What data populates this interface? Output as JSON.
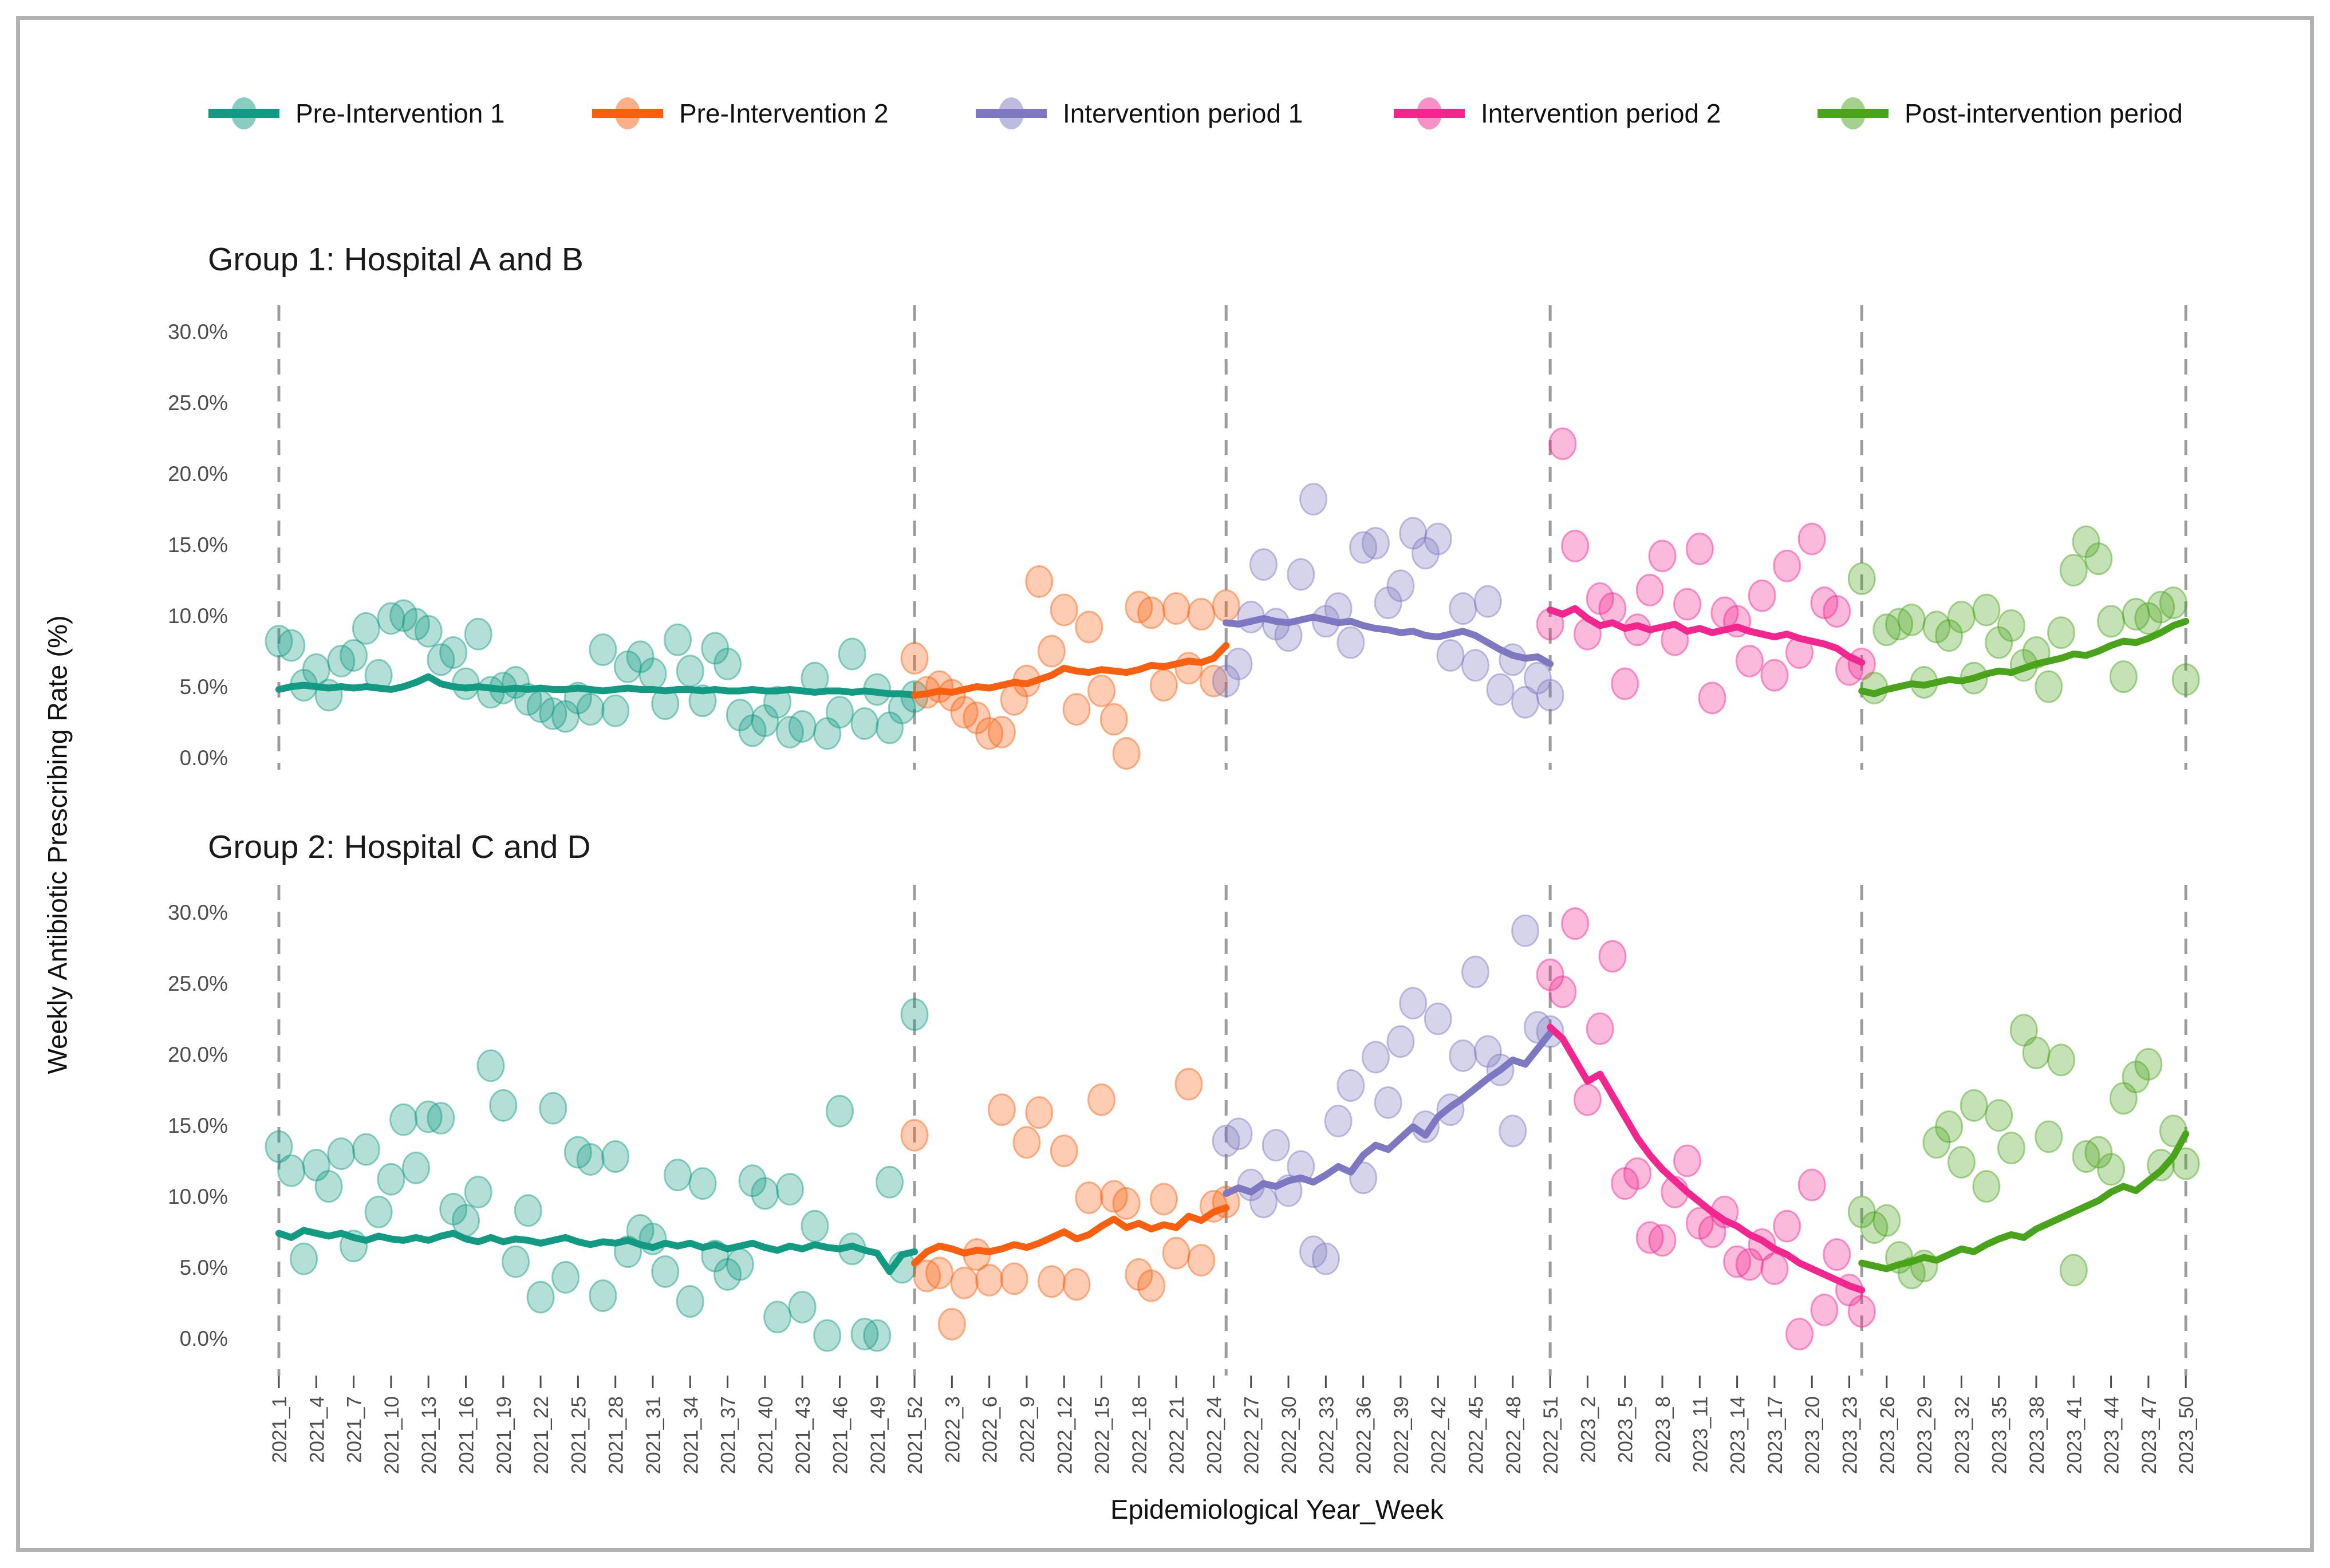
{
  "figure": {
    "y_axis_title": "Weekly Antibiotic Prescribing Rate (%)",
    "x_axis_title": "Epidemiological Year_Week",
    "legend": [
      {
        "label": "Pre-Intervention 1",
        "color": "#129B82"
      },
      {
        "label": "Pre-Intervention 2",
        "color": "#F8600F"
      },
      {
        "label": "Intervention period 1",
        "color": "#7E78C2"
      },
      {
        "label": "Intervention period 2",
        "color": "#F2268E"
      },
      {
        "label": "Post-intervention period",
        "color": "#4AA41B"
      }
    ],
    "divider_color": "#9C9C9C",
    "frame_color": "#B2B2B2"
  },
  "chart_data": {
    "type": "scatter+line",
    "title": "",
    "xlabel": "Epidemiological Year_Week",
    "ylabel": "Weekly Antibiotic Prescribing Rate (%)",
    "ylim": [
      0,
      30
    ],
    "grid": false,
    "legend_position": "top",
    "x_unit": "epidemiological week; week 1 = 2021_1, weekly spacing, 154 weeks total",
    "y_ticks": [
      {
        "label": "30.0%",
        "pct": 30
      },
      {
        "label": "25.0%",
        "pct": 25
      },
      {
        "label": "20.0%",
        "pct": 20
      },
      {
        "label": "15.0%",
        "pct": 15
      },
      {
        "label": "10.0%",
        "pct": 10
      },
      {
        "label": "5.0%",
        "pct": 5
      },
      {
        "label": "0.0%",
        "pct": 0
      }
    ],
    "x_tick_step_weeks": 3,
    "x_tick_labels": [
      "2021_1",
      "2021_4",
      "2021_7",
      "2021_10",
      "2021_13",
      "2021_16",
      "2021_19",
      "2021_22",
      "2021_25",
      "2021_28",
      "2021_31",
      "2021_34",
      "2021_37",
      "2021_40",
      "2021_43",
      "2021_46",
      "2021_49",
      "2021_52",
      "2022_3",
      "2022_6",
      "2022_9",
      "2022_12",
      "2022_15",
      "2022_18",
      "2022_21",
      "2022_24",
      "2022_27",
      "2022_30",
      "2022_33",
      "2022_36",
      "2022_39",
      "2022_42",
      "2022_45",
      "2022_48",
      "2022_51",
      "2023_2",
      "2023_5",
      "2023_8",
      "2023_11",
      "2023_14",
      "2023_17",
      "2023_20",
      "2023_23",
      "2023_26",
      "2023_29",
      "2023_32",
      "2023_35",
      "2023_38",
      "2023_41",
      "2023_44",
      "2023_47",
      "2023_50"
    ],
    "period_boundaries_weeks": [
      1,
      52,
      77,
      103,
      128,
      154
    ],
    "panels": [
      {
        "title": "Group 1: Hospital A and B",
        "series": [
          {
            "name": "Pre-Intervention 1",
            "color": "#129B82",
            "start_week": 1,
            "line": [
              4.8,
              5.0,
              5.1,
              5.0,
              4.9,
              5.0,
              4.9,
              5.0,
              4.9,
              4.8,
              5.0,
              5.3,
              5.7,
              5.2,
              5.0,
              4.9,
              5.0,
              4.9,
              4.8,
              4.9,
              4.8,
              4.9,
              4.8,
              4.8,
              4.9,
              4.8,
              4.7,
              4.8,
              4.9,
              4.8,
              4.8,
              4.7,
              4.8,
              4.8,
              4.7,
              4.8,
              4.7,
              4.7,
              4.8,
              4.7,
              4.7,
              4.8,
              4.7,
              4.6,
              4.7,
              4.7,
              4.6,
              4.7,
              4.6,
              4.5,
              4.5,
              4.4
            ],
            "scatter": [
              8.2,
              7.9,
              5.1,
              6.2,
              4.4,
              6.8,
              7.2,
              9.1,
              5.8,
              9.8,
              10.0,
              9.4,
              8.9,
              6.9,
              7.4,
              5.2,
              8.7,
              4.6,
              4.9,
              5.3,
              4.1,
              3.6,
              3.1,
              2.9,
              4.2,
              3.4,
              7.6,
              3.3,
              6.4,
              7.1,
              5.9,
              3.8,
              8.3,
              6.1,
              4.0,
              7.7,
              6.6,
              3.0,
              1.9,
              2.6,
              3.9,
              1.8,
              2.2,
              5.6,
              1.7,
              3.2,
              7.3,
              2.4,
              4.8,
              2.1,
              3.5,
              4.3
            ]
          },
          {
            "name": "Pre-Intervention 2",
            "color": "#F8600F",
            "start_week": 52,
            "line": [
              4.4,
              4.5,
              4.7,
              4.6,
              4.8,
              5.0,
              4.9,
              5.1,
              5.3,
              5.2,
              5.5,
              5.8,
              6.3,
              6.1,
              6.0,
              6.2,
              6.1,
              6.0,
              6.2,
              6.5,
              6.4,
              6.6,
              6.8,
              6.7,
              7.0,
              7.9
            ],
            "scatter": [
              7.0,
              4.6,
              5.0,
              4.4,
              3.2,
              2.8,
              1.7,
              1.8,
              4.1,
              5.4,
              12.4,
              7.5,
              10.4,
              3.4,
              9.2,
              4.7,
              2.7,
              0.3,
              10.6,
              10.2,
              5.1,
              10.5,
              6.3,
              10.1,
              5.4,
              10.7
            ]
          },
          {
            "name": "Intervention period 1",
            "color": "#7E78C2",
            "start_week": 77,
            "line": [
              9.5,
              9.4,
              9.6,
              9.8,
              9.6,
              9.5,
              9.7,
              9.9,
              9.7,
              9.5,
              9.6,
              9.3,
              9.1,
              9.0,
              8.8,
              8.9,
              8.6,
              8.5,
              8.7,
              8.9,
              8.6,
              8.1,
              7.6,
              7.2,
              7.0,
              7.1,
              6.6
            ],
            "scatter": [
              5.4,
              6.6,
              9.9,
              13.6,
              9.4,
              8.6,
              12.9,
              18.2,
              9.6,
              10.5,
              8.1,
              14.8,
              15.1,
              10.9,
              12.1,
              15.8,
              14.4,
              15.4,
              7.2,
              10.5,
              6.5,
              11.0,
              4.8,
              6.9,
              3.9,
              5.6,
              4.4
            ]
          },
          {
            "name": "Intervention period 2",
            "color": "#F2268E",
            "start_week": 103,
            "line": [
              10.4,
              10.1,
              10.5,
              9.8,
              9.3,
              9.5,
              9.1,
              9.3,
              9.0,
              9.2,
              9.4,
              8.9,
              9.1,
              8.8,
              9.0,
              9.2,
              8.9,
              8.7,
              8.5,
              8.7,
              8.4,
              8.2,
              8.0,
              7.7,
              7.1,
              6.7
            ],
            "scatter": [
              9.4,
              22.1,
              14.9,
              8.7,
              11.2,
              10.5,
              5.2,
              9.0,
              11.8,
              14.2,
              8.3,
              10.8,
              14.7,
              4.2,
              10.2,
              9.6,
              6.8,
              11.4,
              5.8,
              13.5,
              7.4,
              15.4,
              10.9,
              10.3,
              6.2,
              6.6
            ]
          },
          {
            "name": "Post-intervention period",
            "color": "#4AA41B",
            "start_week": 128,
            "line": [
              4.7,
              4.5,
              4.8,
              5.0,
              5.2,
              5.1,
              5.3,
              5.5,
              5.4,
              5.6,
              5.9,
              6.1,
              6.0,
              6.3,
              6.6,
              6.8,
              7.0,
              7.3,
              7.2,
              7.5,
              7.9,
              8.2,
              8.1,
              8.4,
              8.8,
              9.3,
              9.6
            ],
            "scatter": [
              12.6,
              4.9,
              9.0,
              9.4,
              9.7,
              5.3,
              9.2,
              8.6,
              9.9,
              5.6,
              10.4,
              8.1,
              9.3,
              6.5,
              7.4,
              5.0,
              8.8,
              13.2,
              15.2,
              14.0,
              9.6,
              5.7,
              10.1,
              9.8,
              10.6,
              10.9,
              5.5
            ]
          }
        ]
      },
      {
        "title": "Group 2: Hospital C and D",
        "series": [
          {
            "name": "Pre-Intervention 1",
            "color": "#129B82",
            "start_week": 1,
            "line": [
              7.4,
              7.1,
              7.6,
              7.4,
              7.2,
              7.4,
              7.1,
              6.9,
              7.2,
              7.0,
              6.9,
              7.1,
              6.9,
              7.2,
              7.4,
              7.0,
              6.8,
              7.1,
              6.8,
              7.0,
              6.9,
              6.7,
              6.9,
              7.1,
              6.8,
              6.6,
              6.8,
              6.7,
              6.9,
              6.6,
              6.4,
              6.7,
              6.5,
              6.7,
              6.4,
              6.6,
              6.3,
              6.5,
              6.7,
              6.4,
              6.2,
              6.5,
              6.3,
              6.6,
              6.4,
              6.3,
              6.5,
              6.2,
              6.0,
              4.7,
              5.9,
              6.1
            ],
            "scatter": [
              13.5,
              11.8,
              5.6,
              12.2,
              10.7,
              13.0,
              6.5,
              13.3,
              8.9,
              11.2,
              15.4,
              12.0,
              15.6,
              15.5,
              9.1,
              8.3,
              10.3,
              19.2,
              16.4,
              5.4,
              9.0,
              2.9,
              16.2,
              4.3,
              13.1,
              12.6,
              3.0,
              12.8,
              6.1,
              7.6,
              7.0,
              4.7,
              11.5,
              2.6,
              10.9,
              5.8,
              4.5,
              5.2,
              11.1,
              10.2,
              1.5,
              10.5,
              2.2,
              7.9,
              0.2,
              16.0,
              6.3,
              0.3,
              0.2,
              11.0,
              5.0,
              22.8
            ]
          },
          {
            "name": "Pre-Intervention 2",
            "color": "#F8600F",
            "start_week": 52,
            "line": [
              5.3,
              6.1,
              6.5,
              6.3,
              6.0,
              6.2,
              6.1,
              6.3,
              6.6,
              6.4,
              6.7,
              7.1,
              7.5,
              7.0,
              7.3,
              7.9,
              8.4,
              7.8,
              8.1,
              7.7,
              8.0,
              7.8,
              8.6,
              8.3,
              8.9,
              9.2
            ],
            "scatter": [
              14.3,
              4.4,
              4.6,
              1.0,
              3.9,
              5.9,
              4.1,
              16.1,
              4.2,
              13.8,
              15.9,
              4.0,
              13.2,
              3.8,
              9.9,
              16.8,
              10.0,
              9.5,
              4.5,
              3.7,
              9.8,
              6.0,
              17.9,
              5.5,
              9.3,
              9.6
            ]
          },
          {
            "name": "Intervention period 1",
            "color": "#7E78C2",
            "start_week": 77,
            "line": [
              10.2,
              10.6,
              10.3,
              10.9,
              10.7,
              11.1,
              11.3,
              11.0,
              11.5,
              12.1,
              11.7,
              12.9,
              13.6,
              13.3,
              14.1,
              14.9,
              14.3,
              15.6,
              16.3,
              16.9,
              17.6,
              18.3,
              18.9,
              19.6,
              19.3,
              20.4,
              21.5
            ],
            "scatter": [
              13.9,
              14.4,
              10.8,
              9.6,
              13.6,
              10.4,
              12.1,
              6.1,
              5.6,
              15.3,
              17.8,
              11.3,
              19.8,
              16.6,
              20.9,
              23.6,
              14.9,
              22.5,
              16.1,
              19.9,
              25.8,
              20.2,
              18.9,
              14.6,
              28.7,
              21.9,
              21.6
            ]
          },
          {
            "name": "Intervention period 2",
            "color": "#F2268E",
            "start_week": 103,
            "line": [
              21.9,
              21.1,
              19.6,
              18.1,
              18.6,
              17.1,
              15.6,
              14.1,
              12.9,
              11.9,
              11.1,
              10.3,
              9.6,
              8.9,
              8.3,
              7.9,
              7.3,
              6.9,
              6.3,
              5.9,
              5.3,
              4.9,
              4.5,
              4.1,
              3.7,
              3.4
            ],
            "scatter": [
              25.6,
              24.4,
              29.2,
              16.8,
              21.8,
              26.9,
              10.9,
              11.6,
              7.1,
              6.9,
              10.3,
              12.5,
              8.1,
              7.5,
              8.9,
              5.4,
              5.2,
              6.6,
              4.9,
              7.9,
              0.3,
              10.8,
              2.0,
              5.9,
              3.4,
              1.9
            ]
          },
          {
            "name": "Post-intervention period",
            "color": "#4AA41B",
            "start_week": 128,
            "line": [
              5.3,
              5.1,
              4.9,
              5.2,
              5.4,
              5.7,
              5.5,
              5.9,
              6.3,
              6.1,
              6.6,
              7.0,
              7.3,
              7.1,
              7.7,
              8.1,
              8.5,
              8.9,
              9.3,
              9.7,
              10.3,
              10.7,
              10.4,
              11.1,
              11.8,
              12.8,
              14.4
            ],
            "scatter": [
              8.9,
              7.8,
              8.3,
              5.7,
              4.6,
              5.1,
              13.8,
              14.9,
              12.4,
              16.4,
              10.7,
              15.7,
              13.4,
              21.7,
              20.1,
              14.2,
              19.6,
              4.8,
              12.8,
              13.1,
              11.9,
              16.9,
              18.4,
              19.3,
              12.2,
              14.6,
              12.3
            ]
          }
        ]
      }
    ]
  }
}
